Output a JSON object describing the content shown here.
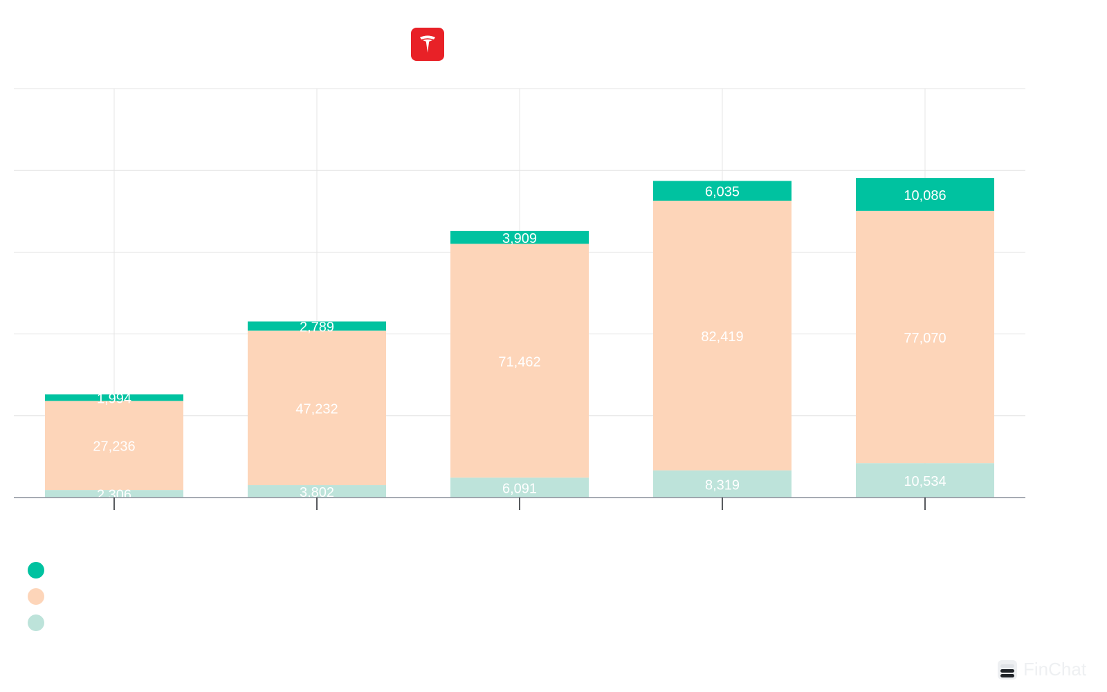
{
  "colors": {
    "series_top": "#00c2a0",
    "series_middle": "#fdd5b9",
    "series_bottom": "#bde3da",
    "logo_bg": "#e82127",
    "gridline": "#e4e4e4",
    "axis": "#8a8f9a",
    "value_label": "#ffffff"
  },
  "legend": {
    "items": [
      {
        "name": "",
        "color": "#00c2a0"
      },
      {
        "name": "",
        "color": "#fdd5b9"
      },
      {
        "name": "",
        "color": "#bde3da"
      }
    ]
  },
  "watermark": {
    "text": "FinChat",
    "icon": "finchat-logo-icon"
  },
  "chart_data": {
    "type": "bar",
    "stacked": true,
    "title": "",
    "xlabel": "",
    "ylabel": "",
    "categories": [
      "",
      "",
      "",
      "",
      ""
    ],
    "ylim": [
      0,
      125000
    ],
    "grid": true,
    "legend_position": "bottom-left",
    "series": [
      {
        "name": "",
        "color": "#bde3da",
        "values": [
          2306,
          3802,
          6091,
          8319,
          10534
        ],
        "labels": [
          "2,306",
          "3,802",
          "6,091",
          "8,319",
          "10,534"
        ]
      },
      {
        "name": "",
        "color": "#fdd5b9",
        "values": [
          27236,
          47232,
          71462,
          82419,
          77070
        ],
        "labels": [
          "27,236",
          "47,232",
          "71,462",
          "82,419",
          "77,070"
        ]
      },
      {
        "name": "",
        "color": "#00c2a0",
        "values": [
          1994,
          2789,
          3909,
          6035,
          10086
        ],
        "labels": [
          "1,994",
          "2,789",
          "3,909",
          "6,035",
          "10,086"
        ]
      }
    ]
  }
}
